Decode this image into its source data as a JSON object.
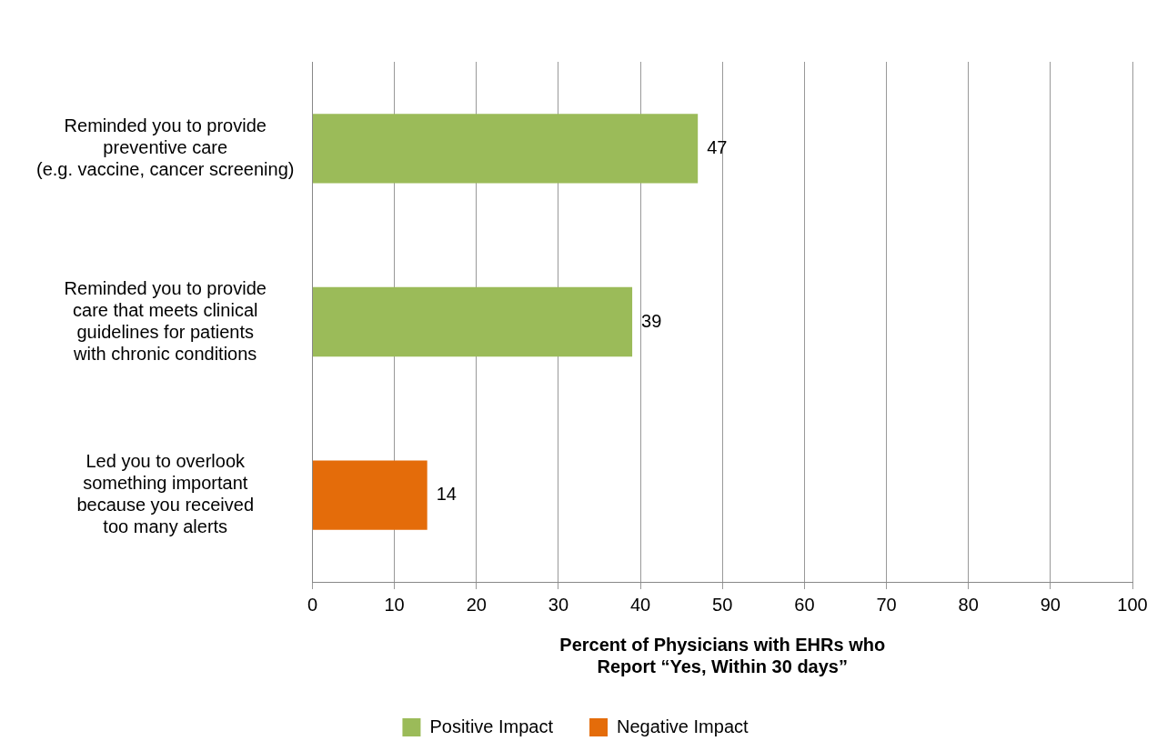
{
  "chart_data": {
    "type": "bar",
    "orientation": "horizontal",
    "stacked": true,
    "categories": [
      "Reminded you to provide\npreventive care\n(e.g. vaccine, cancer screening)",
      "Reminded you to provide\ncare that meets clinical\nguidelines for patients\nwith chronic conditions",
      "Led you to overlook\nsomething important\nbecause you received\ntoo many alerts"
    ],
    "series": [
      {
        "name": "Positive Impact",
        "color": "#9bbb59",
        "values": [
          47,
          39,
          null
        ]
      },
      {
        "name": "Negative Impact",
        "color": "#e46c0a",
        "values": [
          null,
          null,
          14
        ]
      }
    ],
    "xlabel": "Percent of Physicians with EHRs who\nReport “Yes, Within 30 days”",
    "xlim": [
      0,
      100
    ],
    "xticks": [
      0,
      10,
      20,
      30,
      40,
      50,
      60,
      70,
      80,
      90,
      100
    ],
    "grid": "x",
    "legend": "bottom",
    "data_labels": true
  }
}
